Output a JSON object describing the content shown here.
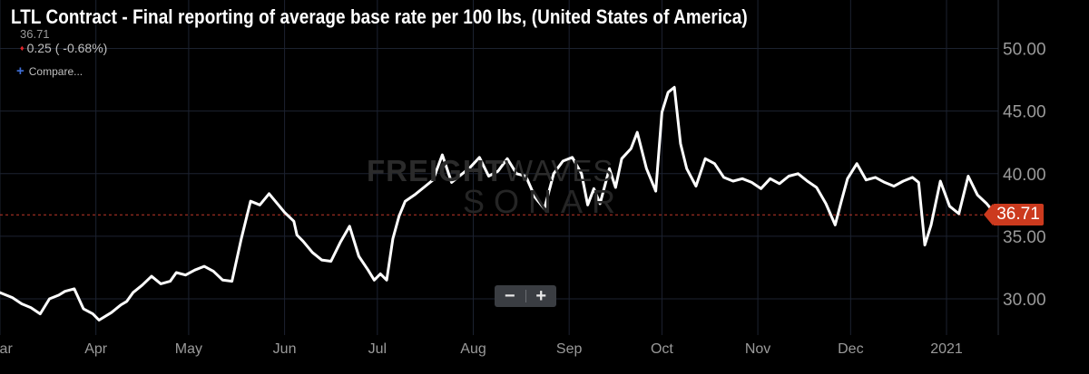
{
  "header": {
    "title": "LTL Contract - Final reporting of average base rate per 100 lbs, (United States of America)",
    "last_value": "36.71",
    "change": "0.25 ( -0.68%)",
    "change_icon": "down-triangle-icon",
    "compare_label": "Compare...",
    "compare_icon": "plus-icon"
  },
  "watermark": {
    "brand_bold": "FREIGHT",
    "brand_light": "WAVES",
    "product": "SONAR"
  },
  "price_badge": {
    "label": "36.71",
    "color": "#cc3a1e"
  },
  "zoom": {
    "minus_label": "−",
    "plus_label": "+"
  },
  "colors": {
    "background": "#000000",
    "line": "#ffffff",
    "grid": "#1c2230",
    "reference_line": "#c0392b",
    "axis_text": "#9a9a9a"
  },
  "chart_data": {
    "type": "line",
    "title": "LTL Contract - Final reporting of average base rate per 100 lbs, (United States of America)",
    "xlabel": "",
    "ylabel": "",
    "ylim": [
      27.2,
      53.5
    ],
    "yticks": [
      30,
      35,
      40,
      45,
      50
    ],
    "ytick_labels": [
      "30.00",
      "35.00",
      "40.00",
      "45.00",
      "50.00"
    ],
    "xlim": [
      "2020-03-01",
      "2021-01-19"
    ],
    "xticks": [
      {
        "date": "2020-03-01",
        "label": "Mar"
      },
      {
        "date": "2020-04-01",
        "label": "Apr"
      },
      {
        "date": "2020-05-01",
        "label": "May"
      },
      {
        "date": "2020-06-01",
        "label": "Jun"
      },
      {
        "date": "2020-07-01",
        "label": "Jul"
      },
      {
        "date": "2020-08-01",
        "label": "Aug"
      },
      {
        "date": "2020-09-01",
        "label": "Sep"
      },
      {
        "date": "2020-10-01",
        "label": "Oct"
      },
      {
        "date": "2020-11-01",
        "label": "Nov"
      },
      {
        "date": "2020-12-01",
        "label": "Dec"
      },
      {
        "date": "2021-01-01",
        "label": "2021"
      }
    ],
    "grid": true,
    "reference_line": 36.71,
    "series": [
      {
        "x": [
          "2020-03-01",
          "2020-03-05",
          "2020-03-08",
          "2020-03-11",
          "2020-03-14",
          "2020-03-17",
          "2020-03-20",
          "2020-03-22",
          "2020-03-25",
          "2020-03-28",
          "2020-03-31",
          "2020-04-02",
          "2020-04-06",
          "2020-04-09",
          "2020-04-11",
          "2020-04-13",
          "2020-04-16",
          "2020-04-19",
          "2020-04-22",
          "2020-04-25",
          "2020-04-27",
          "2020-04-30",
          "2020-05-03",
          "2020-05-06",
          "2020-05-09",
          "2020-05-12",
          "2020-05-15",
          "2020-05-18",
          "2020-05-21",
          "2020-05-24",
          "2020-05-27",
          "2020-05-30",
          "2020-06-01",
          "2020-06-04",
          "2020-06-05",
          "2020-06-07",
          "2020-06-10",
          "2020-06-13",
          "2020-06-16",
          "2020-06-19",
          "2020-06-22",
          "2020-06-25",
          "2020-06-28",
          "2020-06-30",
          "2020-07-02",
          "2020-07-04",
          "2020-07-06",
          "2020-07-08",
          "2020-07-10",
          "2020-07-13",
          "2020-07-16",
          "2020-07-19",
          "2020-07-22",
          "2020-07-25",
          "2020-07-28",
          "2020-07-31",
          "2020-08-03",
          "2020-08-06",
          "2020-08-09",
          "2020-08-12",
          "2020-08-15",
          "2020-08-18",
          "2020-08-21",
          "2020-08-24",
          "2020-08-27",
          "2020-08-30",
          "2020-09-02",
          "2020-09-05",
          "2020-09-07",
          "2020-09-09",
          "2020-09-11",
          "2020-09-14",
          "2020-09-16",
          "2020-09-18",
          "2020-09-21",
          "2020-09-23",
          "2020-09-26",
          "2020-09-29",
          "2020-10-01",
          "2020-10-03",
          "2020-10-05",
          "2020-10-07",
          "2020-10-09",
          "2020-10-12",
          "2020-10-15",
          "2020-10-18",
          "2020-10-21",
          "2020-10-24",
          "2020-10-27",
          "2020-10-30",
          "2020-11-02",
          "2020-11-05",
          "2020-11-08",
          "2020-11-11",
          "2020-11-14",
          "2020-11-17",
          "2020-11-20",
          "2020-11-23",
          "2020-11-26",
          "2020-11-28",
          "2020-11-30",
          "2020-12-03",
          "2020-12-06",
          "2020-12-09",
          "2020-12-12",
          "2020-12-15",
          "2020-12-18",
          "2020-12-21",
          "2020-12-23",
          "2020-12-25",
          "2020-12-27",
          "2020-12-30",
          "2021-01-02",
          "2021-01-05",
          "2021-01-08",
          "2021-01-11",
          "2021-01-14",
          "2021-01-17"
        ],
        "values": [
          30.5,
          30.1,
          29.6,
          29.3,
          28.8,
          30.0,
          30.3,
          30.6,
          30.8,
          29.2,
          28.8,
          28.3,
          28.9,
          29.5,
          29.8,
          30.5,
          31.1,
          31.8,
          31.2,
          31.4,
          32.1,
          31.9,
          32.3,
          32.6,
          32.2,
          31.5,
          31.4,
          34.8,
          37.8,
          37.5,
          38.4,
          37.5,
          36.9,
          36.2,
          35.1,
          34.6,
          33.7,
          33.1,
          33.0,
          34.5,
          35.8,
          33.4,
          32.3,
          31.5,
          32.0,
          31.5,
          34.8,
          36.6,
          37.8,
          38.3,
          38.9,
          39.5,
          41.5,
          39.3,
          39.9,
          40.5,
          41.3,
          39.8,
          40.2,
          41.2,
          40.0,
          39.8,
          38.1,
          37.2,
          40.0,
          41.0,
          41.3,
          40.0,
          37.5,
          38.8,
          37.6,
          40.4,
          38.9,
          41.2,
          42.0,
          43.3,
          40.4,
          38.6,
          44.9,
          46.5,
          46.9,
          42.4,
          40.4,
          39.0,
          41.2,
          40.8,
          39.7,
          39.4,
          39.6,
          39.3,
          38.8,
          39.6,
          39.2,
          39.8,
          40.0,
          39.4,
          38.9,
          37.6,
          35.9,
          37.8,
          39.6,
          40.8,
          39.5,
          39.7,
          39.3,
          39.0,
          39.4,
          39.7,
          39.3,
          34.3,
          35.9,
          39.4,
          37.4,
          36.8,
          39.8,
          38.3,
          37.6,
          36.71
        ],
        "color": "#ffffff"
      }
    ]
  }
}
